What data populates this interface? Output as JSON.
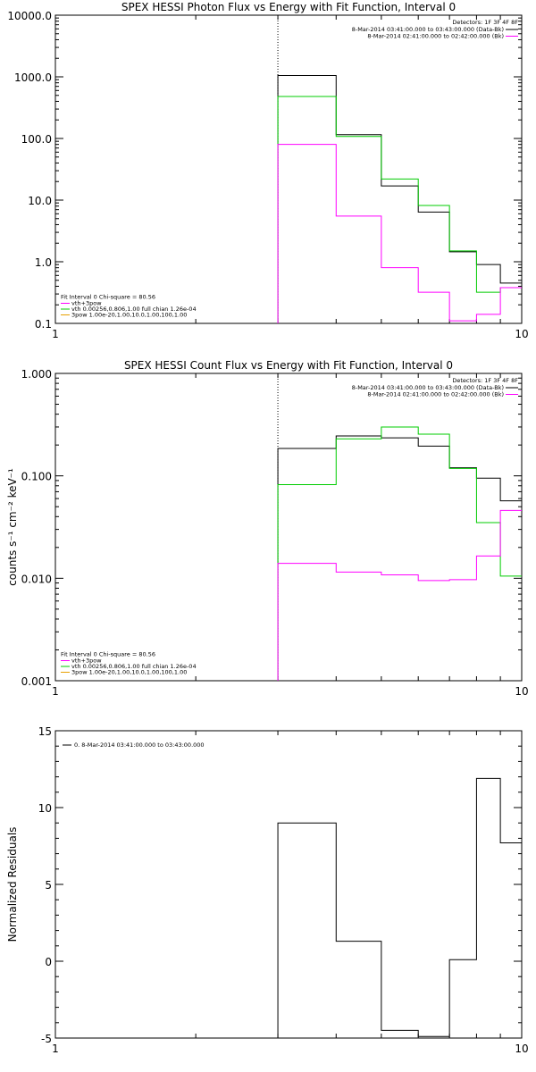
{
  "chart_data": [
    {
      "type": "line",
      "title": "SPEX HESSI Photon Flux vs Energy with Fit Function, Interval 0",
      "xscale": "log",
      "yscale": "log",
      "xlim": [
        1,
        10
      ],
      "ylim": [
        0.1,
        10000
      ],
      "xticks": [
        {
          "v": 1,
          "label": "1"
        },
        {
          "v": 10,
          "label": "10"
        }
      ],
      "yticks": [
        {
          "v": 10000,
          "label": "10000.0"
        },
        {
          "v": 1000,
          "label": "1000.0"
        },
        {
          "v": 100,
          "label": "100.0"
        },
        {
          "v": 10,
          "label": "10.0"
        },
        {
          "v": 1,
          "label": "1.0"
        },
        {
          "v": 0.1,
          "label": "0.1"
        }
      ],
      "vline_x": 3,
      "edges": [
        3,
        4,
        5,
        6,
        7,
        8,
        9,
        10
      ],
      "series": [
        {
          "name": "",
          "color": "#000000",
          "values": [
            1050,
            115,
            17,
            6.4,
            1.45,
            0.9,
            0.45
          ]
        },
        {
          "name": "",
          "color": "#00cc00",
          "values": [
            480,
            108,
            22,
            8.2,
            1.5,
            0.32,
            0.38
          ]
        },
        {
          "name": "",
          "color": "#ff00ff",
          "values": [
            80,
            5.5,
            0.8,
            0.32,
            0.11,
            0.14,
            0.38
          ]
        }
      ],
      "legend_tr": {
        "header": "Detectors: 1F 3F 4F 8F",
        "entries": [
          {
            "text": "8-Mar-2014 03:41:00.000 to 03:43:00.000 (Data-Bk)",
            "color": "#000000"
          },
          {
            "text": "8-Mar-2014 02:41:00.000 to 02:42:00.000 (Bk)",
            "color": "#ff00ff"
          }
        ]
      },
      "legend_bl": {
        "header": "Fit Interval 0   Chi-square = 80.56",
        "entries": [
          {
            "text": "vth+3pow",
            "color": "#ff00ff"
          },
          {
            "text": "vth 0.00256,0.806,1.00  full chian 1.26e-04",
            "color": "#00cc00"
          },
          {
            "text": "3pow 1.00e-20,1.00,10.0,1.00,100,1.00",
            "color": "#e8a000"
          }
        ]
      }
    },
    {
      "type": "line",
      "title": "SPEX HESSI Count Flux vs Energy with Fit Function, Interval 0",
      "ylabel": "counts s⁻¹ cm⁻² keV⁻¹",
      "xscale": "log",
      "yscale": "log",
      "xlim": [
        1,
        10
      ],
      "ylim": [
        0.001,
        1
      ],
      "xticks": [
        {
          "v": 1,
          "label": "1"
        },
        {
          "v": 10,
          "label": "10"
        }
      ],
      "yticks": [
        {
          "v": 1,
          "label": "1.000"
        },
        {
          "v": 0.1,
          "label": "0.100"
        },
        {
          "v": 0.01,
          "label": "0.010"
        },
        {
          "v": 0.001,
          "label": "0.001"
        }
      ],
      "vline_x": 3,
      "edges": [
        3,
        4,
        5,
        6,
        7,
        8,
        9,
        10
      ],
      "series": [
        {
          "name": "",
          "color": "#000000",
          "values": [
            0.185,
            0.245,
            0.235,
            0.195,
            0.12,
            0.095,
            0.057
          ]
        },
        {
          "name": "",
          "color": "#00cc00",
          "values": [
            0.082,
            0.23,
            0.3,
            0.255,
            0.118,
            0.035,
            0.0105
          ]
        },
        {
          "name": "",
          "color": "#ff00ff",
          "values": [
            0.014,
            0.0115,
            0.0108,
            0.0095,
            0.0097,
            0.0165,
            0.046
          ]
        }
      ],
      "legend_tr": {
        "header": "Detectors: 1F 3F 4F 8F",
        "entries": [
          {
            "text": "8-Mar-2014 03:41:00.000 to 03:43:00.000 (Data-Bk)",
            "color": "#000000"
          },
          {
            "text": "8-Mar-2014 02:41:00.000 to 02:42:00.000 (Bk)",
            "color": "#ff00ff"
          }
        ]
      },
      "legend_bl": {
        "header": "Fit Interval 0   Chi-square = 80.56",
        "entries": [
          {
            "text": "vth+3pow",
            "color": "#ff00ff"
          },
          {
            "text": "vth 0.00256,0.806,1.00  full chian 1.26e-04",
            "color": "#00cc00"
          },
          {
            "text": "3pow 1.00e-20,1.00,10.0,1.00,100,1.00",
            "color": "#e8a000"
          }
        ]
      }
    },
    {
      "type": "line",
      "title": "",
      "ylabel": "Normalized Residuals",
      "xscale": "log",
      "yscale": "linear",
      "xlim": [
        1,
        10
      ],
      "ylim": [
        -5,
        15
      ],
      "xticks": [
        {
          "v": 1,
          "label": "1"
        },
        {
          "v": 10,
          "label": "10"
        }
      ],
      "yticks": [
        {
          "v": 15,
          "label": "15"
        },
        {
          "v": 10,
          "label": "10"
        },
        {
          "v": 5,
          "label": "5"
        },
        {
          "v": 0,
          "label": "0"
        },
        {
          "v": -5,
          "label": "-5"
        }
      ],
      "edges": [
        3,
        4,
        5,
        6,
        7,
        8,
        9,
        10
      ],
      "series": [
        {
          "name": "",
          "color": "#000000",
          "values": [
            9.0,
            1.3,
            -4.5,
            -4.9,
            0.1,
            11.9,
            7.7
          ]
        }
      ],
      "legend_tl": {
        "entries": [
          {
            "text": "0. 8-Mar-2014 03:41:00.000 to 03:43:00.000",
            "color": "#000000"
          }
        ]
      }
    }
  ]
}
